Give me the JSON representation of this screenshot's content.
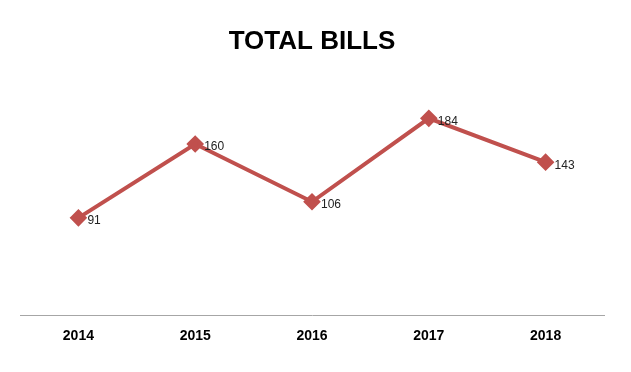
{
  "chart_data": {
    "type": "line",
    "title": "TOTAL BILLS",
    "categories": [
      "2014",
      "2015",
      "2016",
      "2017",
      "2018"
    ],
    "values": [
      91,
      160,
      106,
      184,
      143
    ],
    "color": "#c0504d",
    "marker": "diamond",
    "ylim": [
      0,
      200
    ],
    "grid": false,
    "data_labels": true,
    "tick_labels": "x"
  }
}
